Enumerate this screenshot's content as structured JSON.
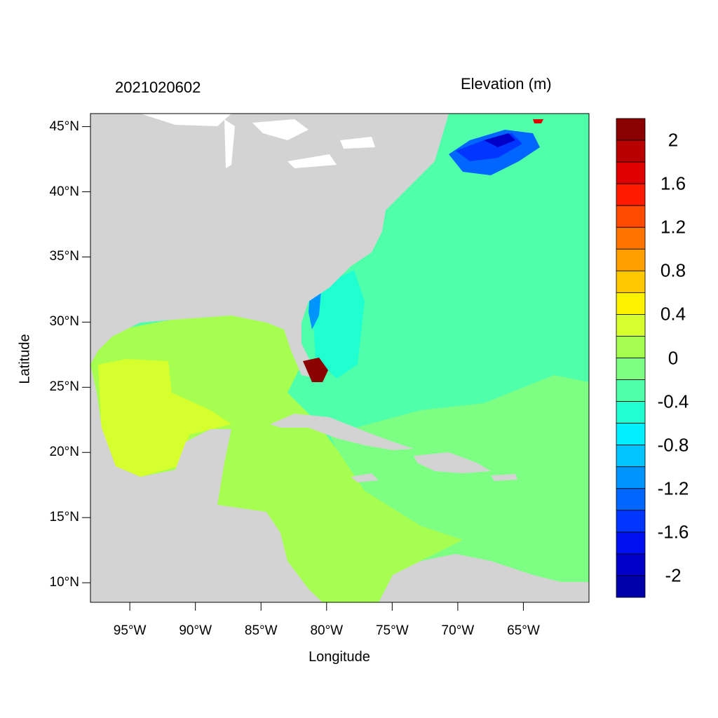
{
  "header": {
    "date_label": "2021020602",
    "variable_label": "Elevation (m)"
  },
  "axes": {
    "xlabel": "Longitude",
    "ylabel": "Latitude",
    "lat_ticks": [
      {
        "value": 45,
        "label": "45°N"
      },
      {
        "value": 40,
        "label": "40°N"
      },
      {
        "value": 35,
        "label": "35°N"
      },
      {
        "value": 30,
        "label": "30°N"
      },
      {
        "value": 25,
        "label": "25°N"
      },
      {
        "value": 20,
        "label": "20°N"
      },
      {
        "value": 15,
        "label": "15°N"
      },
      {
        "value": 10,
        "label": "10°N"
      }
    ],
    "lon_ticks": [
      {
        "value": -95,
        "label": "95°W"
      },
      {
        "value": -90,
        "label": "90°W"
      },
      {
        "value": -85,
        "label": "85°W"
      },
      {
        "value": -80,
        "label": "80°W"
      },
      {
        "value": -75,
        "label": "75°W"
      },
      {
        "value": -70,
        "label": "70°W"
      },
      {
        "value": -65,
        "label": "65°W"
      }
    ],
    "lon_range": [
      -98,
      -60
    ],
    "lat_range": [
      8.5,
      46
    ]
  },
  "colorbar": {
    "colors": [
      "#8b0000",
      "#b80000",
      "#e00000",
      "#ff1a00",
      "#ff4a00",
      "#ff7400",
      "#ff9f00",
      "#ffc800",
      "#fff200",
      "#d6ff2e",
      "#a6ff50",
      "#7dff84",
      "#50ffaa",
      "#20ffd0",
      "#00f0ff",
      "#00c4ff",
      "#0094ff",
      "#0066ff",
      "#0036ff",
      "#0010f0",
      "#0000c8",
      "#0000a8"
    ],
    "labels": [
      "2",
      "1.6",
      "1.2",
      "0.8",
      "0.4",
      "0",
      "-0.4",
      "-0.8",
      "-1.2",
      "-1.6",
      "-2"
    ],
    "land_color": "#d3d3d3"
  }
}
